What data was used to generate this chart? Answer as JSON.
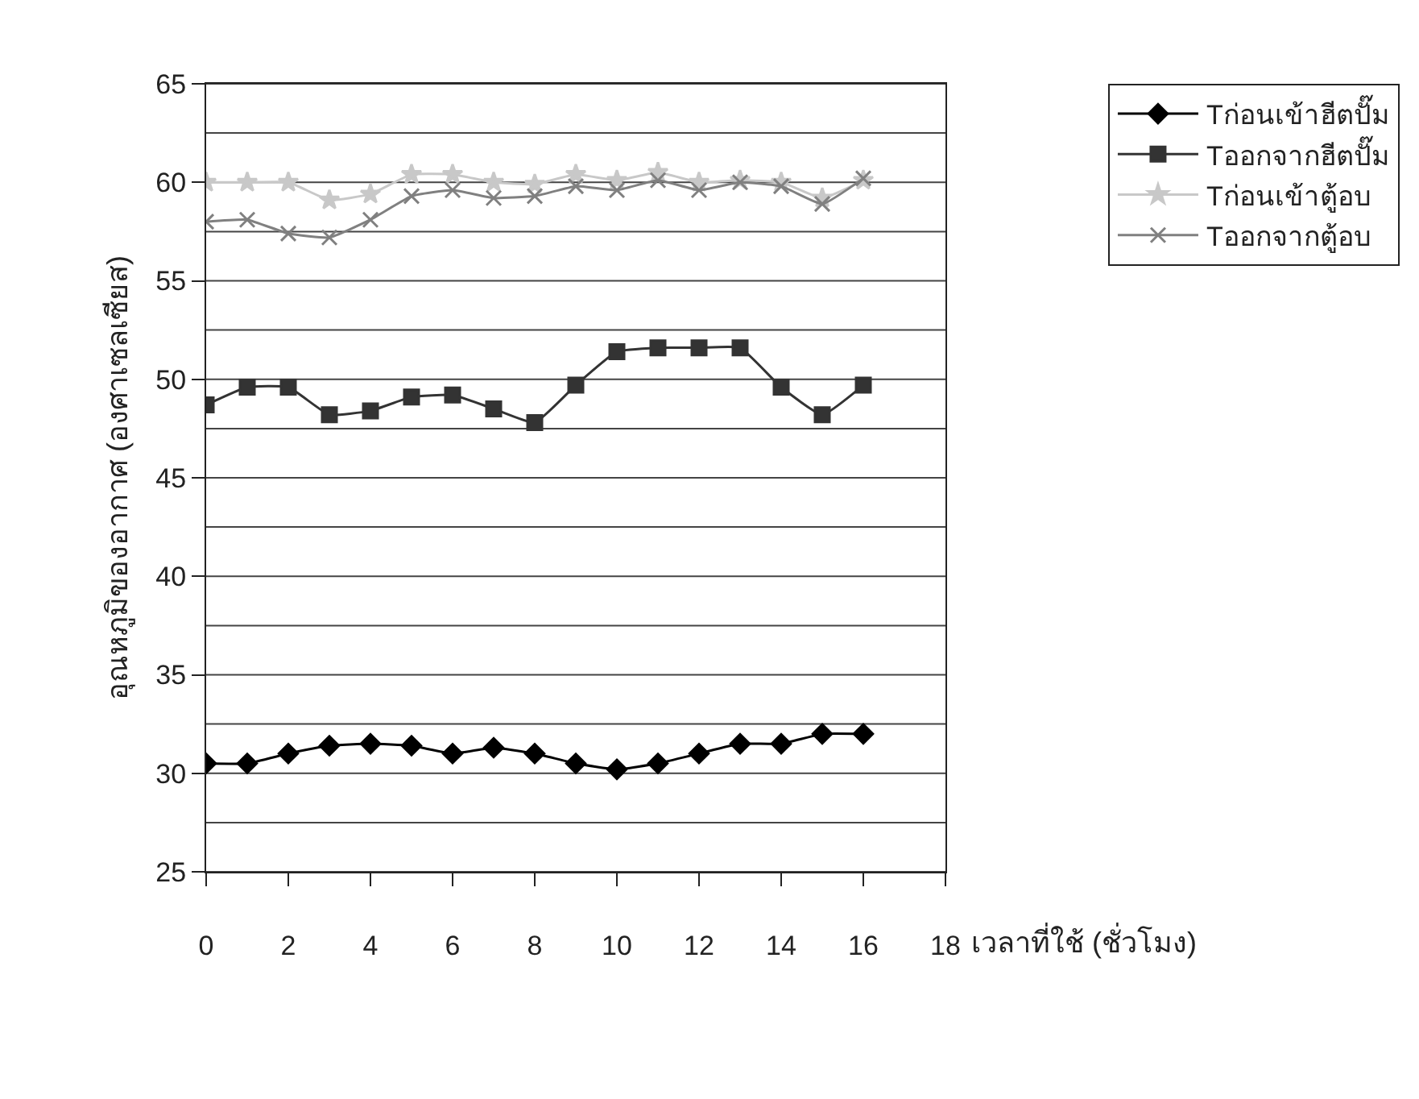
{
  "chart_data": {
    "type": "line",
    "xlabel": "เวลาที่ใช้ (ชั่วโมง)",
    "ylabel": "อุณหภูมิของอากาศ (องศาเซลเซียส)",
    "x": [
      0,
      1,
      2,
      3,
      4,
      5,
      6,
      7,
      8,
      9,
      10,
      11,
      12,
      13,
      14,
      15,
      16
    ],
    "series": [
      {
        "name": "Tก่อนเข้าฮีตปั๊ม",
        "color": "#000000",
        "marker": "diamond",
        "values": [
          30.5,
          30.5,
          31.0,
          31.4,
          31.5,
          31.4,
          31.0,
          31.3,
          31.0,
          30.5,
          30.2,
          30.5,
          31.0,
          31.5,
          31.5,
          32.0,
          32.0
        ]
      },
      {
        "name": "Tออกจากฮีตปั๊ม",
        "color": "#333333",
        "marker": "square",
        "values": [
          48.7,
          49.6,
          49.6,
          48.2,
          48.4,
          49.1,
          49.2,
          48.5,
          47.8,
          49.7,
          51.4,
          51.6,
          51.6,
          51.6,
          49.6,
          48.2,
          49.7
        ]
      },
      {
        "name": "Tก่อนเข้าตู้อบ",
        "color": "#c8c8c8",
        "marker": "star",
        "values": [
          60.0,
          60.0,
          60.0,
          59.1,
          59.4,
          60.4,
          60.4,
          60.0,
          59.9,
          60.4,
          60.1,
          60.5,
          60.0,
          60.1,
          60.0,
          59.2,
          60.1
        ]
      },
      {
        "name": "Tออกจากตู้อบ",
        "color": "#808080",
        "marker": "cross",
        "values": [
          58.0,
          58.1,
          57.4,
          57.2,
          58.1,
          59.3,
          59.6,
          59.2,
          59.3,
          59.8,
          59.6,
          60.1,
          59.6,
          60.0,
          59.8,
          58.9,
          60.2
        ]
      }
    ],
    "xlim": [
      0,
      18
    ],
    "xticks": [
      0,
      2,
      4,
      6,
      8,
      10,
      12,
      14,
      16,
      18
    ],
    "ylim": [
      25,
      65
    ],
    "yticks": [
      25,
      30,
      35,
      40,
      45,
      50,
      55,
      60,
      65
    ],
    "grid": "y",
    "legend": "right",
    "line_style": "solid"
  }
}
